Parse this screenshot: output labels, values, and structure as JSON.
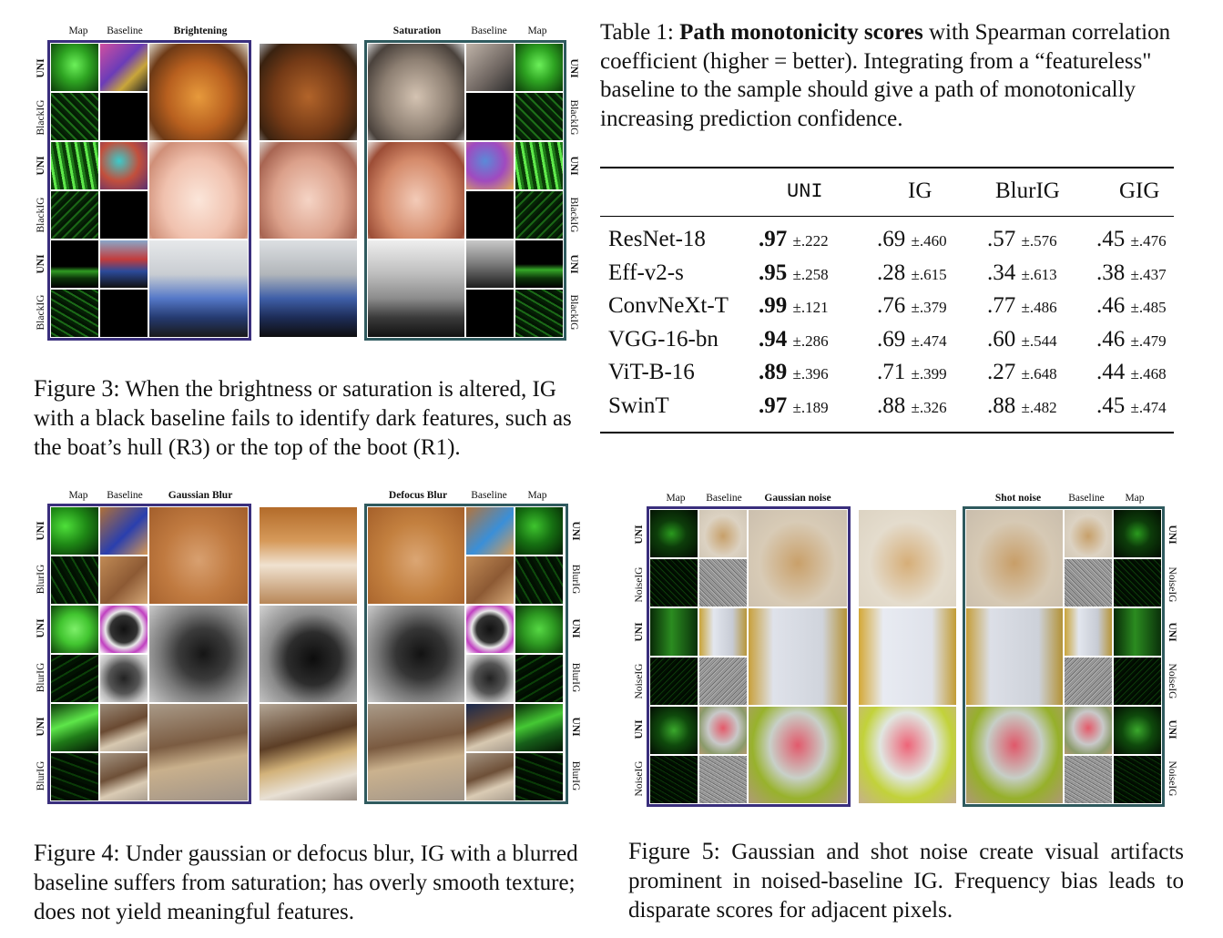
{
  "fig3": {
    "headers": {
      "map_left": "Map",
      "baseline_left": "Baseline",
      "brightening": "Brightening",
      "saturation": "Saturation",
      "baseline_right": "Baseline",
      "map_right": "Map"
    },
    "rows": [
      "UNI",
      "BlackIG",
      "UNI",
      "BlackIG",
      "UNI",
      "BlackIG"
    ],
    "caption_label": "Figure 3:",
    "caption_text": "When the brightness or saturation is altered, IG with a black baseline fails to identify dark features, such as the boat’s hull (R3) or the top of the boot (R1)."
  },
  "table": {
    "label": "Table 1:",
    "title_bold": "Path monotonicity scores",
    "title_rest": "with Spearman correlation coefficient (higher = better). Integrating from a “featureless\" baseline to the sample should give a path of monotonically increasing prediction confidence.",
    "columns": [
      "UNI",
      "IG",
      "BlurIG",
      "GIG"
    ],
    "rows": [
      {
        "model": "ResNet-18",
        "cells": [
          [
            ".97",
            "±.222"
          ],
          [
            ".69",
            "±.460"
          ],
          [
            ".57",
            "±.576"
          ],
          [
            ".45",
            "±.476"
          ]
        ]
      },
      {
        "model": "Eff-v2-s",
        "cells": [
          [
            ".95",
            "±.258"
          ],
          [
            ".28",
            "±.615"
          ],
          [
            ".34",
            "±.613"
          ],
          [
            ".38",
            "±.437"
          ]
        ]
      },
      {
        "model": "ConvNeXt-T",
        "cells": [
          [
            ".99",
            "±.121"
          ],
          [
            ".76",
            "±.379"
          ],
          [
            ".77",
            "±.486"
          ],
          [
            ".46",
            "±.485"
          ]
        ]
      },
      {
        "model": "VGG-16-bn",
        "cells": [
          [
            ".94",
            "±.286"
          ],
          [
            ".69",
            "±.474"
          ],
          [
            ".60",
            "±.544"
          ],
          [
            ".46",
            "±.479"
          ]
        ]
      },
      {
        "model": "ViT-B-16",
        "cells": [
          [
            ".89",
            "±.396"
          ],
          [
            ".71",
            "±.399"
          ],
          [
            ".27",
            "±.648"
          ],
          [
            ".44",
            "±.468"
          ]
        ]
      },
      {
        "model": "SwinT",
        "cells": [
          [
            ".97",
            "±.189"
          ],
          [
            ".88",
            "±.326"
          ],
          [
            ".88",
            "±.482"
          ],
          [
            ".45",
            "±.474"
          ]
        ]
      }
    ]
  },
  "fig4": {
    "headers": {
      "map_left": "Map",
      "baseline_left": "Baseline",
      "gaussian_blur": "Gaussian Blur",
      "defocus_blur": "Defocus Blur",
      "baseline_right": "Baseline",
      "map_right": "Map"
    },
    "rows": [
      "UNI",
      "BlurIG",
      "UNI",
      "BlurIG",
      "UNI",
      "BlurIG"
    ],
    "caption_label": "Figure 4:",
    "caption_text": "Under gaussian or defocus blur, IG with a blurred baseline suffers from saturation; has overly smooth texture; does not yield meaningful features."
  },
  "fig5": {
    "headers": {
      "map_left": "Map",
      "baseline_left": "Baseline",
      "gaussian_noise": "Gaussian noise",
      "shot_noise": "Shot noise",
      "baseline_right": "Baseline",
      "map_right": "Map"
    },
    "rows": [
      "UNI",
      "NoiseIG",
      "UNI",
      "NoiseIG",
      "UNI",
      "NoiseIG"
    ],
    "caption_label": "Figure 5:",
    "caption_text": "Gaussian and shot noise create visual artifacts prominent in noised-baseline IG. Frequency bias leads to disparate scores for adjacent pixels."
  },
  "colors": {
    "frame_left": "#3a2f7d",
    "frame_right": "#2f5a5e",
    "map_green": "#39d12a"
  }
}
